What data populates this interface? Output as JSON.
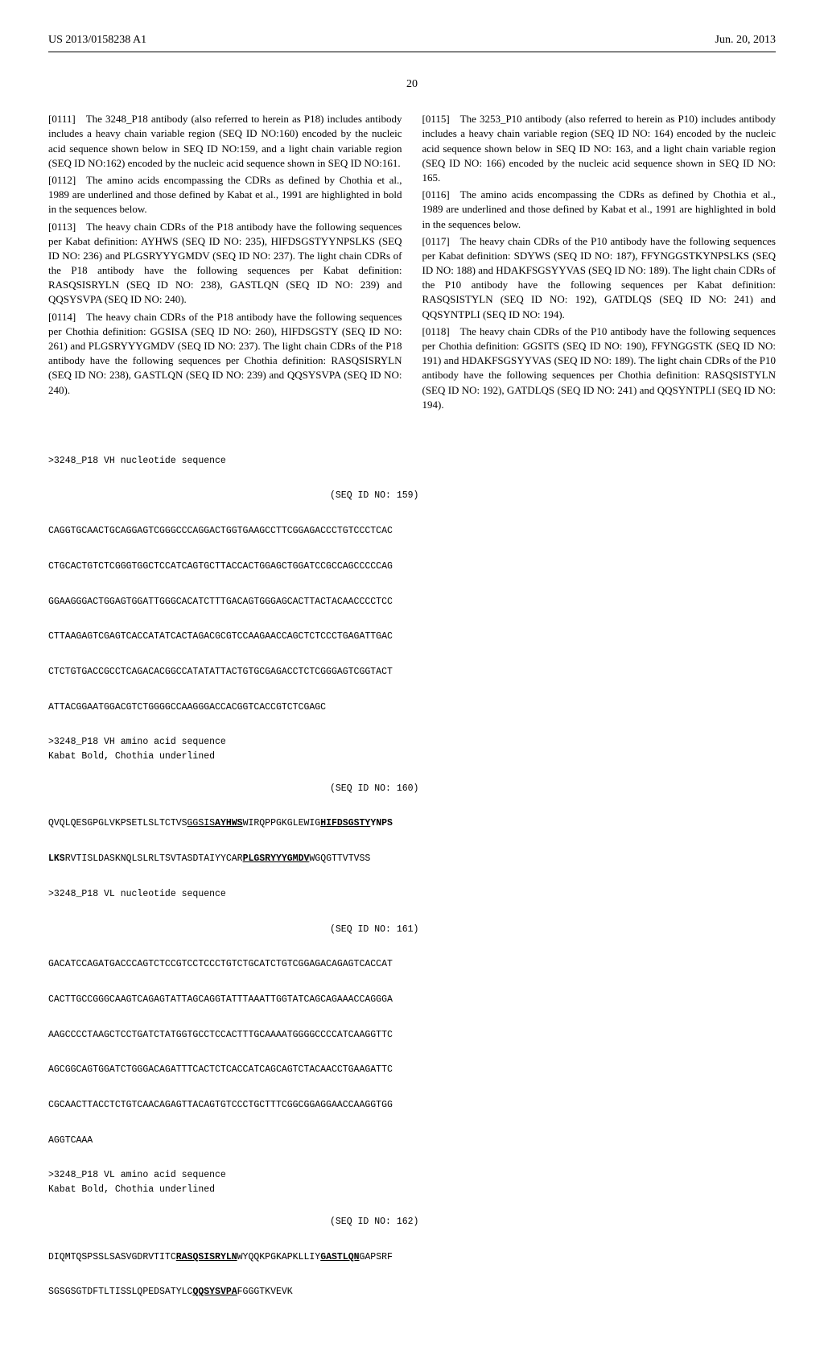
{
  "header": {
    "pub_number": "US 2013/0158238 A1",
    "date": "Jun. 20, 2013"
  },
  "page_number": "20",
  "left_col": {
    "p0111": "[0111] The 3248_P18 antibody (also referred to herein as P18) includes antibody includes a heavy chain variable region (SEQ ID NO:160) encoded by the nucleic acid sequence shown below in SEQ ID NO:159, and a light chain variable region (SEQ ID NO:162) encoded by the nucleic acid sequence shown in SEQ ID NO:161.",
    "p0112": "[0112] The amino acids encompassing the CDRs as defined by Chothia et al., 1989 are underlined and those defined by Kabat et al., 1991 are highlighted in bold in the sequences below.",
    "p0113": "[0113] The heavy chain CDRs of the P18 antibody have the following sequences per Kabat definition: AYHWS (SEQ ID NO: 235), HIFDSGSTYYNPSLKS (SEQ ID NO: 236) and PLGSRYYYGMDV (SEQ ID NO: 237). The light chain CDRs of the P18 antibody have the following sequences per Kabat definition: RASQSISRYLN (SEQ ID NO: 238), GASTLQN (SEQ ID NO: 239) and QQSYSVPA (SEQ ID NO: 240).",
    "p0114": "[0114] The heavy chain CDRs of the P18 antibody have the following sequences per Chothia definition: GGSISA (SEQ ID NO: 260), HIFDSGSTY (SEQ ID NO: 261) and PLGSRYYYGMDV (SEQ ID NO: 237). The light chain CDRs of the P18 antibody have the following sequences per Chothia definition: RASQSISRYLN (SEQ ID NO: 238), GASTLQN (SEQ ID NO: 239) and QQSYSVPA (SEQ ID NO: 240)."
  },
  "right_col": {
    "p0115": "[0115] The 3253_P10 antibody (also referred to herein as P10) includes antibody includes a heavy chain variable region (SEQ ID NO: 164) encoded by the nucleic acid sequence shown below in SEQ ID NO: 163, and a light chain variable region (SEQ ID NO: 166) encoded by the nucleic acid sequence shown in SEQ ID NO: 165.",
    "p0116": "[0116] The amino acids encompassing the CDRs as defined by Chothia et al., 1989 are underlined and those defined by Kabat et al., 1991 are highlighted in bold in the sequences below.",
    "p0117": "[0117] The heavy chain CDRs of the P10 antibody have the following sequences per Kabat definition: SDYWS (SEQ ID NO: 187), FFYNGGSTKYNPSLKS (SEQ ID NO: 188) and HDAKFSGSYYVAS (SEQ ID NO: 189). The light chain CDRs of the P10 antibody have the following sequences per Kabat definition: RASQSISTYLN (SEQ ID NO: 192), GATDLQS (SEQ ID NO: 241) and QQSYNTPLI (SEQ ID NO: 194).",
    "p0118": "[0118] The heavy chain CDRs of the P10 antibody have the following sequences per Chothia definition: GGSITS (SEQ ID NO: 190), FFYNGGSTK (SEQ ID NO: 191) and HDAKFSGSYYVAS (SEQ ID NO: 189). The light chain CDRs of the P10 antibody have the following sequences per Chothia definition: RASQSISTYLN (SEQ ID NO: 192), GATDLQS (SEQ ID NO: 241) and QQSYNTPLI (SEQ ID NO: 194)."
  },
  "sequences": {
    "vh_nuc_header": ">3248_P18 VH nucleotide sequence",
    "vh_nuc_seqid": "(SEQ ID NO: 159)",
    "vh_nuc_lines": [
      "CAGGTGCAACTGCAGGAGTCGGGCCCAGGACTGGTGAAGCCTTCGGAGACCCTGTCCCTCAC",
      "CTGCACTGTCTCGGGTGGCTCCATCAGTGCTTACCACTGGAGCTGGATCCGCCAGCCCCCAG",
      "GGAAGGGACTGGAGTGGATTGGGCACATCTTTGACAGTGGGAGCACTTACTACAACCCCTCC",
      "CTTAAGAGTCGAGTCACCATATCACTAGACGCGTCCAAGAACCAGCTCTCCCTGAGATTGAC",
      "CTCTGTGACCGCCTCAGACACGGCCATATATTACTGTGCGAGACCTCTCGGGAGTCGGTACT",
      "ATTACGGAATGGACGTCTGGGGCCAAGGGACCACGGTCACCGTCTCGAGC"
    ],
    "vh_aa_header": ">3248_P18 VH amino acid sequence",
    "vh_aa_subheader": "Kabat Bold, Chothia underlined",
    "vh_aa_seqid": "(SEQ ID NO: 160)",
    "vh_aa_line1_parts": [
      {
        "text": "QVQLQESGPGLVKPSETLSLTCTVS",
        "style": ""
      },
      {
        "text": "GGSIS",
        "style": "underline"
      },
      {
        "text": "AYHWS",
        "style": "bold-underline"
      },
      {
        "text": "WIRQPPGKGLEWIG",
        "style": ""
      },
      {
        "text": "HIFDSGSTY",
        "style": "bold-underline"
      },
      {
        "text": "YNPS",
        "style": "bold"
      }
    ],
    "vh_aa_line2_parts": [
      {
        "text": "LKS",
        "style": "bold"
      },
      {
        "text": "RVTISLDASKNQLSLRLTSVTASDTAIYYCAR",
        "style": ""
      },
      {
        "text": "PLGSRYYYGMDV",
        "style": "bold-underline"
      },
      {
        "text": "WGQGTTVTVSS",
        "style": ""
      }
    ],
    "vl_nuc_header": ">3248_P18 VL nucleotide sequence",
    "vl_nuc_seqid": "(SEQ ID NO: 161)",
    "vl_nuc_lines": [
      "GACATCCAGATGACCCAGTCTCCGTCCTCCCTGTCTGCATCTGTCGGAGACAGAGTCACCAT",
      "CACTTGCCGGGCAAGTCAGAGTATTAGCAGGTATTTAAATTGGTATCAGCAGAAACCAGGGA",
      "AAGCCCCTAAGCTCCTGATCTATGGTGCCTCCACTTTGCAAAATGGGGCCCCATCAAGGTTC",
      "AGCGGCAGTGGATCTGGGACAGATTTCACTCTCACCATCAGCAGTCTACAACCTGAAGATTC",
      "CGCAACTTACCTCTGTCAACAGAGTTACAGTGTCCCTGCTTTCGGCGGAGGAACCAAGGTGG",
      "AGGTCAAA"
    ],
    "vl_aa_header": ">3248_P18 VL amino acid sequence",
    "vl_aa_subheader": "Kabat Bold, Chothia underlined",
    "vl_aa_seqid": "(SEQ ID NO: 162)",
    "vl_aa_line1_parts": [
      {
        "text": "DIQMTQSPSSLSASVGDRVTITC",
        "style": ""
      },
      {
        "text": "RASQSISRYLN",
        "style": "bold-underline"
      },
      {
        "text": "WYQQKPGKAPKLLIY",
        "style": ""
      },
      {
        "text": "GASTLQN",
        "style": "bold-underline"
      },
      {
        "text": "GAPSRF",
        "style": ""
      }
    ],
    "vl_aa_line2_parts": [
      {
        "text": "SGSGSGTDFTLTISSLQPEDSATYLC",
        "style": ""
      },
      {
        "text": "QQSYSVPA",
        "style": "bold-underline"
      },
      {
        "text": "FGGGTKVEVK",
        "style": ""
      }
    ]
  }
}
